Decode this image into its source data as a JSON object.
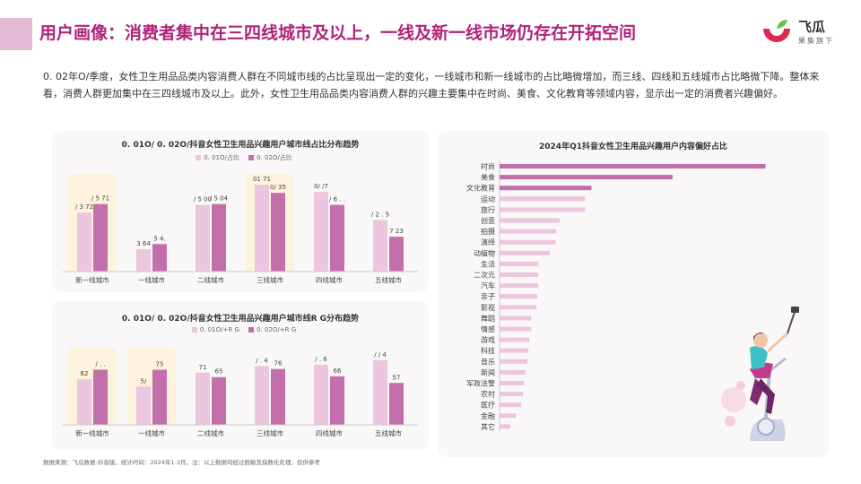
{
  "header": {
    "title": "用户画像：消费者集中在三四线城市及以上，一线及新一线市场仍存在开拓空间",
    "brand_name": "飞瓜",
    "brand_sub": "果集旗下"
  },
  "intro": "0. 02年O/季度，女性卫生用品品类内容消费人群在不同城市线的占比呈现出一定的变化，一线城市和新一线城市的占比略微增加，而三线、四线和五线城市占比略微下降。整体来看，消费人群更加集中在三四线城市及以上。此外，女性卫生用品品类内容消费人群的兴趣主要集中在时尚、美食、文化教育等领域内容，显示出一定的消费者兴趣偏好。",
  "colors": {
    "light": "#ecc6df",
    "dark": "#c36fab",
    "highlight": "#fdf3dc",
    "accent": "#b0237a"
  },
  "chart_data": [
    {
      "type": "bar",
      "title": "0. 01O/ 0. 02O/抖音女性卫生用品兴趣用户城市线占比分布趋势",
      "legend": [
        "0. 01O/占比",
        "0. 02O/占比"
      ],
      "categories": [
        "新一线城市",
        "一线城市",
        "二线城市",
        "三线城市",
        "四线城市",
        "五线城市"
      ],
      "series": [
        {
          "name": "0. 01O/占比",
          "values": [
            13.7,
            5.2,
            15.5,
            20.2,
            18.5,
            12.0
          ]
        },
        {
          "name": "0. 02O/占比",
          "values": [
            15.7,
            6.4,
            15.7,
            18.3,
            15.5,
            8.1
          ]
        }
      ],
      "labels": [
        [
          "/ 3 72",
          "/ 5 71"
        ],
        [
          "3 64",
          "5 4."
        ],
        [
          "/ 5 00",
          "/ 5 04"
        ],
        [
          "01 71",
          "0/ 35"
        ],
        [
          "0/ /7",
          "/ 6 . ."
        ],
        [
          "/ 2 . 5",
          "7 23"
        ]
      ],
      "highlighted": [
        "新一线城市",
        "三线城市"
      ]
    },
    {
      "type": "bar",
      "title": "0. 01O/ 0. 02O/抖音女性卫生用品兴趣用户城市线R G分布趋势",
      "legend": [
        "0. 01O/+R G",
        "0. 02O/+R G"
      ],
      "categories": [
        "新一线城市",
        "一线城市",
        "二线城市",
        "三线城市",
        "四线城市",
        "五线城市"
      ],
      "series": [
        {
          "name": "0. 01O/+R G",
          "values": [
            62,
            52,
            71,
            80,
            82,
            88
          ]
        },
        {
          "name": "0. 02O/+R G",
          "values": [
            75,
            75,
            65,
            76,
            66,
            57
          ]
        }
      ],
      "labels": [
        [
          "62",
          "/ . ."
        ],
        [
          "5/",
          "75"
        ],
        [
          "71",
          "65"
        ],
        [
          "/ . 4",
          "76"
        ],
        [
          "/ . 6",
          "66"
        ],
        [
          "/ / 4",
          "57"
        ]
      ],
      "highlighted": [
        "新一线城市",
        "一线城市"
      ]
    },
    {
      "type": "bar",
      "orientation": "horizontal",
      "title": "2024年Q1抖音女性卫生用品兴趣用户内容偏好占比",
      "categories": [
        "时尚",
        "美食",
        "文化教育",
        "运动",
        "旅行",
        "创意",
        "拍摄",
        "演绎",
        "动植物",
        "生活",
        "二次元",
        "汽车",
        "亲子",
        "影视",
        "舞蹈",
        "情感",
        "游戏",
        "科技",
        "音乐",
        "新闻",
        "军政法警",
        "农村",
        "医疗",
        "金融",
        "其它"
      ],
      "values": [
        29.5,
        19.2,
        10.2,
        9.5,
        9.5,
        6.7,
        6.3,
        6.2,
        5.6,
        4.3,
        4.3,
        4.3,
        4.2,
        4.1,
        3.5,
        3.5,
        3.3,
        3.2,
        3.1,
        2.9,
        2.7,
        2.6,
        2.4,
        1.8,
        1.2
      ]
    }
  ],
  "footnote": "数据来源：飞瓜数据-抖音版，统计时间：2024年1-3月，注：以上数据均经过脱敏及指数化处理，仅供参考"
}
